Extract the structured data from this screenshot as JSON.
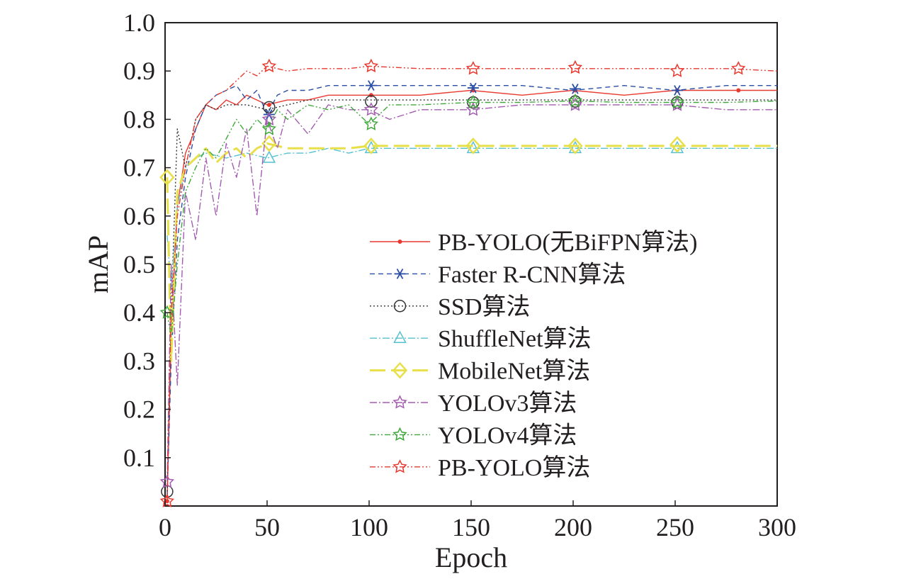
{
  "chart_data": {
    "type": "line",
    "xlabel": "Epoch",
    "ylabel": "mAP",
    "xlim": [
      0,
      300
    ],
    "ylim": [
      0,
      1.0
    ],
    "x_ticks": [
      "0",
      "50",
      "100",
      "150",
      "200",
      "250",
      "300"
    ],
    "y_ticks": [
      "0.1",
      "0.2",
      "0.3",
      "0.4",
      "0.5",
      "0.6",
      "0.7",
      "0.8",
      "0.9",
      "1.0"
    ],
    "x_tick_values": [
      0,
      50,
      100,
      150,
      200,
      250,
      300
    ],
    "y_tick_values": [
      0.1,
      0.2,
      0.3,
      0.4,
      0.5,
      0.6,
      0.7,
      0.8,
      0.9,
      1.0
    ],
    "legend_position": "center-right",
    "grid": false,
    "series": [
      {
        "name": "PB-YOLO(无BiFPN算法)",
        "color": "#e8392f",
        "dash": "",
        "marker": "dot",
        "x": [
          1,
          3,
          6,
          10,
          15,
          20,
          25,
          30,
          35,
          40,
          45,
          50,
          60,
          70,
          80,
          90,
          100,
          125,
          150,
          175,
          200,
          225,
          250,
          275,
          300
        ],
        "y": [
          0.01,
          0.35,
          0.62,
          0.73,
          0.78,
          0.83,
          0.82,
          0.84,
          0.83,
          0.85,
          0.84,
          0.83,
          0.84,
          0.84,
          0.85,
          0.85,
          0.85,
          0.85,
          0.86,
          0.85,
          0.86,
          0.85,
          0.86,
          0.86,
          0.86
        ],
        "marker_x": [
          1,
          51,
          101,
          151,
          201,
          251,
          281
        ],
        "marker_y": [
          0.01,
          0.83,
          0.85,
          0.86,
          0.86,
          0.86,
          0.86
        ]
      },
      {
        "name": "Faster R-CNN算法",
        "color": "#2b4fa6",
        "dash": "7,5",
        "marker": "asterisk",
        "x": [
          1,
          3,
          6,
          10,
          15,
          20,
          25,
          30,
          35,
          40,
          45,
          50,
          55,
          60,
          70,
          80,
          90,
          100,
          125,
          150,
          175,
          200,
          225,
          250,
          275,
          300
        ],
        "y": [
          0.02,
          0.3,
          0.55,
          0.68,
          0.78,
          0.83,
          0.85,
          0.86,
          0.87,
          0.84,
          0.86,
          0.81,
          0.85,
          0.86,
          0.86,
          0.87,
          0.87,
          0.87,
          0.87,
          0.87,
          0.87,
          0.86,
          0.87,
          0.86,
          0.87,
          0.87
        ],
        "marker_x": [
          51,
          101,
          151,
          201,
          251
        ],
        "marker_y": [
          0.81,
          0.87,
          0.865,
          0.863,
          0.86
        ]
      },
      {
        "name": "SSD算法",
        "color": "#333333",
        "dash": "2,3",
        "marker": "circle",
        "x": [
          1,
          3,
          6,
          10,
          15,
          20,
          25,
          30,
          40,
          50,
          60,
          70,
          80,
          90,
          100,
          125,
          150,
          175,
          200,
          225,
          250,
          275,
          300
        ],
        "y": [
          0.03,
          0.4,
          0.78,
          0.7,
          0.8,
          0.83,
          0.82,
          0.83,
          0.83,
          0.82,
          0.83,
          0.84,
          0.84,
          0.84,
          0.84,
          0.84,
          0.84,
          0.84,
          0.84,
          0.84,
          0.84,
          0.84,
          0.84
        ],
        "marker_x": [
          1,
          51,
          101,
          151,
          201,
          251
        ],
        "marker_y": [
          0.03,
          0.825,
          0.837,
          0.835,
          0.837,
          0.835
        ]
      },
      {
        "name": "ShuffleNet算法",
        "color": "#56c1d0",
        "dash": "10,3,2,3",
        "marker": "triangle",
        "x": [
          1,
          3,
          6,
          10,
          15,
          20,
          30,
          40,
          50,
          60,
          70,
          80,
          90,
          100,
          125,
          150,
          175,
          200,
          225,
          250,
          275,
          300
        ],
        "y": [
          0.56,
          0.45,
          0.62,
          0.7,
          0.72,
          0.73,
          0.72,
          0.73,
          0.72,
          0.73,
          0.73,
          0.74,
          0.73,
          0.74,
          0.74,
          0.74,
          0.74,
          0.74,
          0.74,
          0.74,
          0.74,
          0.74
        ],
        "marker_x": [
          51,
          101,
          151,
          201,
          251
        ],
        "marker_y": [
          0.72,
          0.74,
          0.74,
          0.74,
          0.74
        ]
      },
      {
        "name": "MobileNet算法",
        "color": "#e8e04a",
        "dash": "22,8",
        "marker": "diamond",
        "x": [
          1,
          3,
          6,
          10,
          15,
          20,
          25,
          30,
          35,
          40,
          45,
          50,
          60,
          70,
          80,
          90,
          100,
          125,
          150,
          175,
          200,
          225,
          250,
          275,
          300
        ],
        "y": [
          0.68,
          0.3,
          0.65,
          0.7,
          0.72,
          0.74,
          0.71,
          0.73,
          0.74,
          0.72,
          0.74,
          0.75,
          0.74,
          0.74,
          0.74,
          0.74,
          0.745,
          0.745,
          0.745,
          0.745,
          0.745,
          0.745,
          0.745,
          0.745,
          0.745
        ],
        "marker_x": [
          1,
          51,
          101,
          151,
          201,
          251
        ],
        "marker_y": [
          0.68,
          0.75,
          0.745,
          0.745,
          0.745,
          0.748
        ]
      },
      {
        "name": "YOLOv3算法",
        "color": "#a35db0",
        "dash": "10,3,2,3",
        "marker": "star",
        "x": [
          1,
          3,
          6,
          10,
          15,
          20,
          25,
          30,
          35,
          40,
          45,
          50,
          55,
          60,
          70,
          80,
          90,
          100,
          110,
          125,
          150,
          175,
          200,
          225,
          250,
          275,
          300
        ],
        "y": [
          0.05,
          0.5,
          0.25,
          0.65,
          0.55,
          0.72,
          0.6,
          0.75,
          0.68,
          0.78,
          0.6,
          0.8,
          0.74,
          0.82,
          0.77,
          0.83,
          0.82,
          0.82,
          0.8,
          0.82,
          0.82,
          0.83,
          0.83,
          0.83,
          0.83,
          0.82,
          0.82
        ],
        "marker_x": [
          1,
          51,
          101,
          151,
          201,
          251
        ],
        "marker_y": [
          0.05,
          0.8,
          0.82,
          0.82,
          0.83,
          0.83
        ]
      },
      {
        "name": "YOLOv4算法",
        "color": "#3fa83a",
        "dash": "8,3,2,3,2,3",
        "marker": "star",
        "x": [
          1,
          3,
          6,
          10,
          15,
          20,
          25,
          30,
          35,
          40,
          45,
          50,
          55,
          60,
          70,
          80,
          90,
          100,
          110,
          125,
          150,
          175,
          200,
          225,
          250,
          275,
          300
        ],
        "y": [
          0.4,
          0.35,
          0.5,
          0.65,
          0.7,
          0.74,
          0.72,
          0.76,
          0.8,
          0.77,
          0.8,
          0.78,
          0.82,
          0.8,
          0.83,
          0.82,
          0.83,
          0.79,
          0.83,
          0.83,
          0.835,
          0.835,
          0.838,
          0.835,
          0.835,
          0.835,
          0.838
        ],
        "marker_x": [
          1,
          51,
          101,
          151,
          201,
          251
        ],
        "marker_y": [
          0.4,
          0.78,
          0.79,
          0.835,
          0.838,
          0.835
        ]
      },
      {
        "name": "PB-YOLO算法",
        "color": "#e8392f",
        "dash": "8,3,2,3,2,3",
        "marker": "star",
        "x": [
          1,
          3,
          6,
          10,
          15,
          20,
          25,
          30,
          35,
          40,
          45,
          50,
          60,
          70,
          80,
          90,
          100,
          125,
          150,
          175,
          200,
          225,
          250,
          275,
          300
        ],
        "y": [
          0.01,
          0.4,
          0.6,
          0.7,
          0.8,
          0.83,
          0.85,
          0.86,
          0.88,
          0.9,
          0.89,
          0.91,
          0.9,
          0.905,
          0.905,
          0.905,
          0.91,
          0.905,
          0.905,
          0.905,
          0.905,
          0.905,
          0.905,
          0.905,
          0.9
        ],
        "marker_x": [
          1,
          51,
          101,
          151,
          201,
          251,
          281
        ],
        "marker_y": [
          0.01,
          0.91,
          0.91,
          0.905,
          0.907,
          0.9,
          0.905
        ]
      }
    ]
  }
}
